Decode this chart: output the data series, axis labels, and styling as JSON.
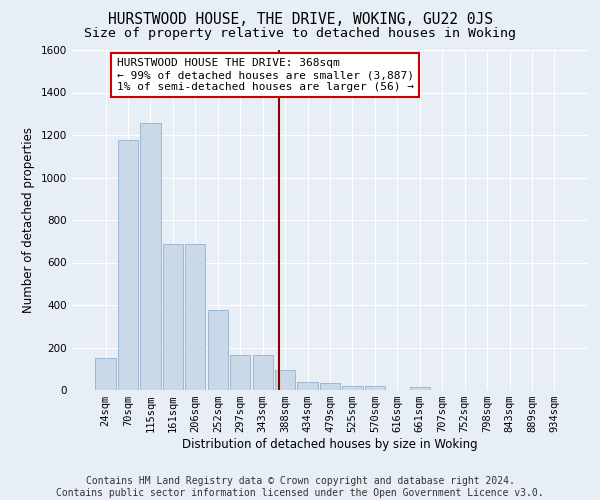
{
  "title": "HURSTWOOD HOUSE, THE DRIVE, WOKING, GU22 0JS",
  "subtitle": "Size of property relative to detached houses in Woking",
  "xlabel": "Distribution of detached houses by size in Woking",
  "ylabel": "Number of detached properties",
  "footer_line1": "Contains HM Land Registry data © Crown copyright and database right 2024.",
  "footer_line2": "Contains public sector information licensed under the Open Government Licence v3.0.",
  "bar_labels": [
    "24sqm",
    "70sqm",
    "115sqm",
    "161sqm",
    "206sqm",
    "252sqm",
    "297sqm",
    "343sqm",
    "388sqm",
    "434sqm",
    "479sqm",
    "525sqm",
    "570sqm",
    "616sqm",
    "661sqm",
    "707sqm",
    "752sqm",
    "798sqm",
    "843sqm",
    "889sqm",
    "934sqm"
  ],
  "bar_values": [
    150,
    1175,
    1255,
    685,
    685,
    375,
    165,
    165,
    95,
    40,
    35,
    20,
    20,
    0,
    15,
    0,
    0,
    0,
    0,
    0,
    0
  ],
  "bar_color": "#c9d9e8",
  "bar_edge_color": "#a0b8d0",
  "background_color": "#e8eef5",
  "grid_color": "#ffffff",
  "vline_x_index": 7.72,
  "vline_color": "#8b0000",
  "annotation_text": "HURSTWOOD HOUSE THE DRIVE: 368sqm\n← 99% of detached houses are smaller (3,887)\n1% of semi-detached houses are larger (56) →",
  "annotation_box_edge": "#cc0000",
  "ylim": [
    0,
    1600
  ],
  "yticks": [
    0,
    200,
    400,
    600,
    800,
    1000,
    1200,
    1400,
    1600
  ],
  "title_fontsize": 10.5,
  "subtitle_fontsize": 9.5,
  "axis_label_fontsize": 8.5,
  "tick_fontsize": 7.5,
  "annotation_fontsize": 8,
  "footer_fontsize": 7
}
